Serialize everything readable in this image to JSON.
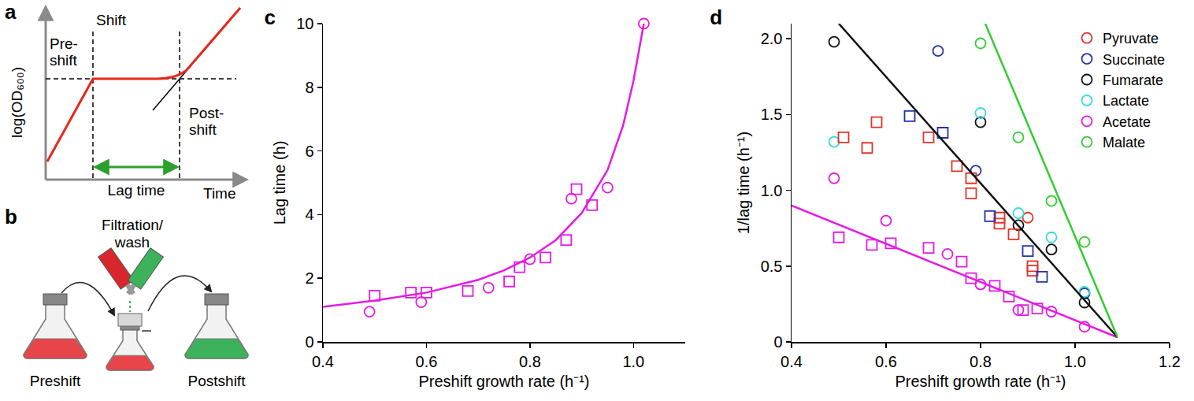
{
  "diagrams": {
    "a": {
      "label": "a",
      "y_axis": "log(OD₆₀₀)",
      "x_axis": "Time",
      "shift": "Shift",
      "pre": "Pre-shift",
      "post": "Post-shift",
      "lag": "Lag time"
    },
    "b": {
      "label": "b",
      "step": "Filtration/wash",
      "from": "Preshift",
      "to": "Postshift"
    }
  },
  "chart_data": [
    {
      "type": "scatter",
      "title": "c",
      "x_label": "Preshift growth rate (h⁻¹)",
      "y_label": "Lag time (h)",
      "xlim": [
        0.4,
        1.1
      ],
      "xticks": [
        0.4,
        0.6,
        0.8,
        {
          "value": 1,
          "label": "1.0"
        }
      ],
      "ylim": [
        0,
        10
      ],
      "yticks": [
        0,
        2,
        4,
        6,
        8,
        10
      ],
      "grid": false,
      "series": [
        {
          "color": "#e41be4",
          "marker": "square",
          "x": [
            0.5,
            0.57,
            0.6,
            0.68,
            0.76,
            0.78,
            0.83,
            0.87,
            0.89,
            0.92
          ],
          "values": [
            1.45,
            1.55,
            1.55,
            1.6,
            1.9,
            2.35,
            2.65,
            3.2,
            4.8,
            4.3
          ]
        },
        {
          "color": "#e41be4",
          "marker": "circle",
          "x": [
            0.49,
            0.59,
            0.72,
            0.8,
            0.88,
            0.95,
            1.02
          ],
          "values": [
            0.95,
            1.25,
            1.7,
            2.6,
            4.5,
            4.85,
            10
          ]
        },
        {
          "type": "line",
          "color": "#e41be4",
          "x": [
            0.4,
            0.5,
            0.6,
            0.7,
            0.75,
            0.8,
            0.85,
            0.9,
            0.95,
            0.98,
            1.0,
            1.02
          ],
          "values": [
            1.1,
            1.3,
            1.55,
            1.95,
            2.25,
            2.65,
            3.2,
            4.05,
            5.4,
            6.8,
            8.2,
            10
          ]
        }
      ]
    },
    {
      "type": "scatter",
      "title": "d",
      "x_label": "Preshift growth rate (h⁻¹)",
      "y_label": "1/lag time (h⁻¹)",
      "xlim": [
        0.4,
        1.2
      ],
      "xticks": [
        0.4,
        0.6,
        0.8,
        {
          "value": 1,
          "label": "1.0"
        },
        1.2
      ],
      "ylim": [
        0,
        2.1
      ],
      "yticks": [
        0,
        0.5,
        {
          "value": 1,
          "label": "1.0"
        },
        1.5,
        {
          "value": 2,
          "label": "2.0"
        }
      ],
      "grid": false,
      "legend": "top-right",
      "series": [
        {
          "name": "Pyruvate",
          "color": "#e0342a",
          "marker": "circle",
          "x": [
            0.9
          ],
          "values": [
            0.82
          ]
        },
        {
          "name": "Succinate",
          "color": "#2233aa",
          "marker": "circle",
          "x": [
            0.71,
            0.79,
            1.02
          ],
          "values": [
            1.92,
            1.13,
            0.32
          ]
        },
        {
          "name": "Fumarate",
          "color": "#111111",
          "marker": "circle",
          "x": [
            0.49,
            0.8,
            0.88,
            0.95,
            1.02
          ],
          "values": [
            1.98,
            1.45,
            0.77,
            0.61,
            0.26
          ]
        },
        {
          "name": "Lactate",
          "color": "#33dddd",
          "marker": "circle",
          "x": [
            0.49,
            0.8,
            0.88,
            0.95,
            1.02
          ],
          "values": [
            1.32,
            1.51,
            0.85,
            0.69,
            0.33
          ]
        },
        {
          "name": "Acetate",
          "color": "#e41be4",
          "marker": "circle",
          "x": [
            0.49,
            0.6,
            0.73,
            0.8,
            0.88,
            0.95,
            1.02
          ],
          "values": [
            1.08,
            0.8,
            0.58,
            0.38,
            0.21,
            0.2,
            0.1
          ]
        },
        {
          "name": "Malate",
          "color": "#33cc33",
          "marker": "circle",
          "x": [
            0.8,
            0.88,
            0.95,
            1.02
          ],
          "values": [
            1.97,
            1.35,
            0.93,
            0.66
          ]
        },
        {
          "color": "#e0342a",
          "marker": "square",
          "x": [
            0.51,
            0.56,
            0.58,
            0.69,
            0.75,
            0.78,
            0.78,
            0.84,
            0.84,
            0.87,
            0.91,
            0.91
          ],
          "values": [
            1.35,
            1.28,
            1.45,
            1.35,
            1.16,
            0.98,
            1.08,
            0.78,
            0.82,
            0.71,
            0.5,
            0.47
          ]
        },
        {
          "color": "#2233aa",
          "marker": "square",
          "x": [
            0.65,
            0.72,
            0.82,
            0.9,
            0.93
          ],
          "values": [
            1.49,
            1.38,
            0.83,
            0.6,
            0.43
          ]
        },
        {
          "color": "#e41be4",
          "marker": "square",
          "x": [
            0.5,
            0.57,
            0.61,
            0.69,
            0.76,
            0.78,
            0.83,
            0.86,
            0.89,
            0.92
          ],
          "values": [
            0.69,
            0.64,
            0.65,
            0.62,
            0.53,
            0.42,
            0.37,
            0.3,
            0.21,
            0.22
          ]
        },
        {
          "type": "line",
          "color": "#e41be4",
          "x": [
            0.4,
            1.09
          ],
          "values": [
            0.9,
            0.03
          ]
        },
        {
          "type": "line",
          "color": "#111111",
          "x": [
            0.5,
            1.09
          ],
          "values": [
            2.1,
            0.03
          ]
        },
        {
          "type": "line",
          "color": "#33cc33",
          "x": [
            0.81,
            1.09
          ],
          "values": [
            2.1,
            0.03
          ]
        }
      ]
    }
  ]
}
